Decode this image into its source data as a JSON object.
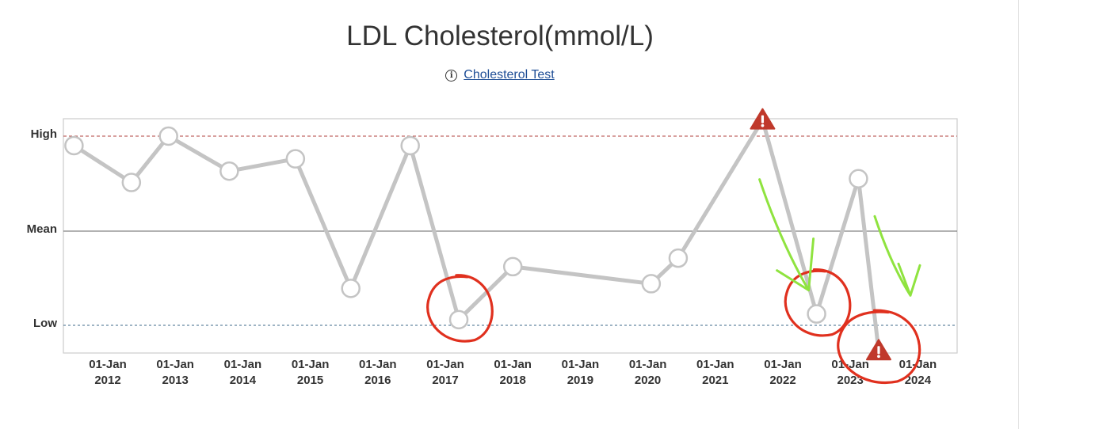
{
  "title": "LDL Cholesterol(mmol/L)",
  "info_link": {
    "icon": "info-circle-icon",
    "label": "Cholesterol Test"
  },
  "colors": {
    "line": "#c4c4c4",
    "high_line": "#b0413e",
    "low_line": "#3d6a8a",
    "mean_line": "#666666",
    "alert": "#c0392b",
    "annotation_red": "#e0301e",
    "annotation_green": "#8fe33f"
  },
  "chart_data": {
    "type": "line",
    "y_reference_labels": [
      "High",
      "Mean",
      "Low"
    ],
    "x_tick_labels": [
      [
        "01-Jan",
        "2012"
      ],
      [
        "01-Jan",
        "2013"
      ],
      [
        "01-Jan",
        "2014"
      ],
      [
        "01-Jan",
        "2015"
      ],
      [
        "01-Jan",
        "2016"
      ],
      [
        "01-Jan",
        "2017"
      ],
      [
        "01-Jan",
        "2018"
      ],
      [
        "01-Jan",
        "2019"
      ],
      [
        "01-Jan",
        "2020"
      ],
      [
        "01-Jan",
        "2021"
      ],
      [
        "01-Jan",
        "2022"
      ],
      [
        "01-Jan",
        "2023"
      ],
      [
        "01-Jan",
        "2024"
      ]
    ],
    "x_range_years": [
      2011.5,
      2025.2
    ],
    "y_scale": {
      "low": 0,
      "mean": 1,
      "high": 2
    },
    "y_range": [
      -0.29,
      2.2
    ],
    "points": [
      {
        "x": 2011.5,
        "y": 1.9,
        "alert": false
      },
      {
        "x": 2012.35,
        "y": 1.51,
        "alert": false
      },
      {
        "x": 2012.9,
        "y": 2.0,
        "alert": false
      },
      {
        "x": 2013.8,
        "y": 1.63,
        "alert": false
      },
      {
        "x": 2014.78,
        "y": 1.76,
        "alert": false
      },
      {
        "x": 2015.6,
        "y": 0.39,
        "alert": false
      },
      {
        "x": 2016.48,
        "y": 1.9,
        "alert": false
      },
      {
        "x": 2017.2,
        "y": 0.06,
        "alert": false
      },
      {
        "x": 2018.0,
        "y": 0.62,
        "alert": false
      },
      {
        "x": 2020.05,
        "y": 0.44,
        "alert": false
      },
      {
        "x": 2020.45,
        "y": 0.71,
        "alert": false
      },
      {
        "x": 2021.7,
        "y": 2.17,
        "alert": true
      },
      {
        "x": 2022.5,
        "y": 0.12,
        "alert": false
      },
      {
        "x": 2023.12,
        "y": 1.55,
        "alert": false
      },
      {
        "x": 2023.42,
        "y": -0.27,
        "alert": true
      }
    ],
    "grid": false,
    "legend": "none",
    "annotations": [
      {
        "type": "red-circle",
        "around_point_index": 7
      },
      {
        "type": "red-circle",
        "around_point_index": 12
      },
      {
        "type": "red-circle",
        "around_point_index": 14
      },
      {
        "type": "green-arrow",
        "toward_point_index": 12
      },
      {
        "type": "green-arrow",
        "toward_point_index": 14
      }
    ]
  }
}
